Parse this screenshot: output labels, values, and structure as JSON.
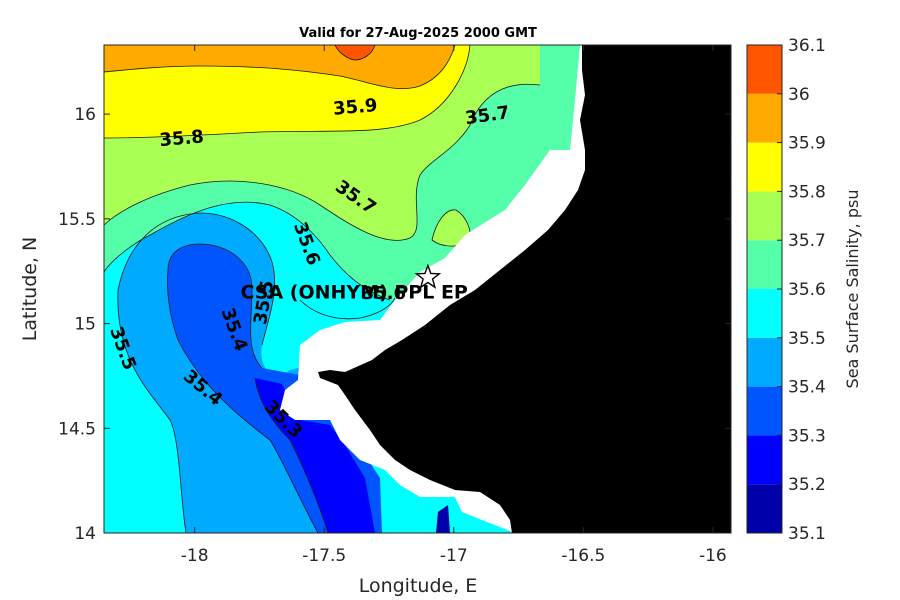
{
  "chart_data": {
    "type": "heatmap",
    "title": "Valid for 27-Aug-2025 2000 GMT",
    "xlabel": "Longitude, E",
    "ylabel": "Latitude, N",
    "xlim": [
      -18.35,
      -15.93
    ],
    "ylim": [
      14.0,
      16.33
    ],
    "x_ticks": [
      -18,
      -17.5,
      -17,
      -16.5,
      -16
    ],
    "x_tick_labels": [
      "-18",
      "-17.5",
      "-17",
      "-16.5",
      "-16"
    ],
    "y_ticks": [
      14,
      14.5,
      15,
      15.5,
      16
    ],
    "y_tick_labels": [
      "14",
      "14.5",
      "15",
      "15.5",
      "16"
    ],
    "grid": false,
    "colorbar": {
      "label": "Sea Surface Salinity, psu",
      "levels": [
        35.1,
        35.2,
        35.3,
        35.4,
        35.5,
        35.6,
        35.7,
        35.8,
        35.9,
        36,
        36.1
      ],
      "tick_labels": [
        "35.1",
        "35.2",
        "35.3",
        "35.4",
        "35.5",
        "35.6",
        "35.7",
        "35.8",
        "35.9",
        "36",
        "36.1"
      ],
      "colors": [
        "#0000aa",
        "#0000ff",
        "#0055ff",
        "#00aaff",
        "#00ffff",
        "#55ffaa",
        "#aaff55",
        "#ffff00",
        "#ffaa00",
        "#ff5500"
      ]
    },
    "contour_labels": [
      {
        "text": "35.9",
        "lon": -17.38,
        "lat": 16.03
      },
      {
        "text": "35.8",
        "lon": -18.05,
        "lat": 15.88
      },
      {
        "text": "35.7",
        "lon": -16.87,
        "lat": 15.99
      },
      {
        "text": "35.7",
        "lon": -17.38,
        "lat": 15.6
      },
      {
        "text": "35.6",
        "lon": -17.57,
        "lat": 15.38
      },
      {
        "text": "35.5",
        "lon": -17.73,
        "lat": 15.1
      },
      {
        "text": "35.6",
        "lon": -17.27,
        "lat": 15.14
      },
      {
        "text": "35.4",
        "lon": -17.85,
        "lat": 14.97
      },
      {
        "text": "35.5",
        "lon": -18.28,
        "lat": 14.88
      },
      {
        "text": "35.4",
        "lon": -17.97,
        "lat": 14.69
      },
      {
        "text": "35.3",
        "lon": -17.66,
        "lat": 14.54
      }
    ],
    "station": {
      "label": "CSA (ONHYM) PPL EP",
      "lon": -17.1,
      "lat": 15.22,
      "marker": "star"
    },
    "land_color": "#000000",
    "no_data_color": "#ffffff"
  }
}
